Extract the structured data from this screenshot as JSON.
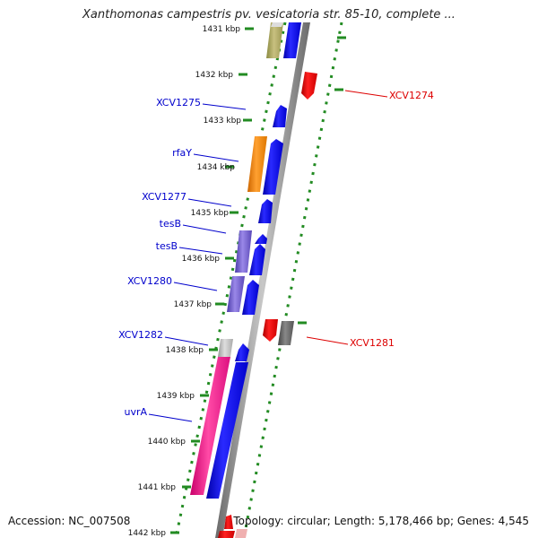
{
  "title": "Xanthomonas campestris pv. vesicatoria str. 85-10, complete ...",
  "footer": {
    "accession": "Accession: NC_007508",
    "summary": "Topology: circular; Length: 5,178,466 bp; Genes: 4,545"
  },
  "kbp_labels": [
    "1431 kbp",
    "1432 kbp",
    "1433 kbp",
    "1434 kbp",
    "1435 kbp",
    "1436 kbp",
    "1437 kbp",
    "1438 kbp",
    "1439 kbp",
    "1440 kbp",
    "1441 kbp",
    "1442 kbp"
  ],
  "gene_labels_left": [
    "XCV1275",
    "rfaY",
    "XCV1277",
    "tesB",
    "tesB",
    "XCV1280",
    "XCV1282",
    "uvrA"
  ],
  "gene_labels_right": [
    "XCV1274",
    "XCV1281"
  ],
  "colors": {
    "forward_cds": "#0000ee",
    "reverse_cds": "#ee0000",
    "backbone": "#808080",
    "ticks": "#228b22",
    "label_forward": "#0000cc",
    "label_reverse": "#dd0000"
  }
}
